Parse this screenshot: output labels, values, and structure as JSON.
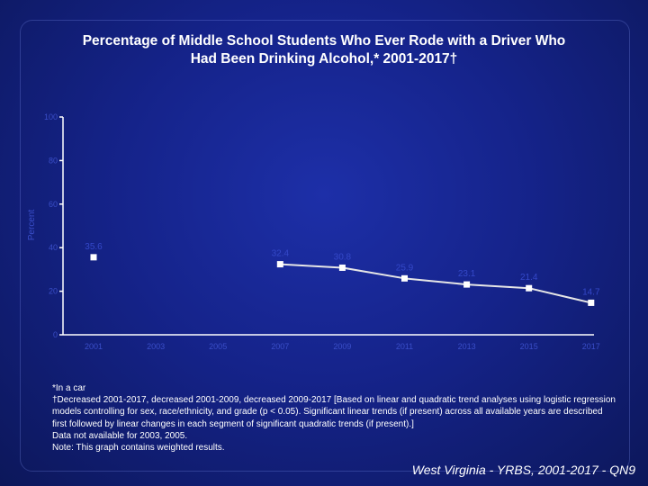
{
  "title": {
    "line1": "Percentage of Middle School Students Who Ever Rode with a Driver Who",
    "line2": "Had Been Drinking Alcohol,* 2001-2017†"
  },
  "chart_data": {
    "type": "line",
    "ylabel": "Percent",
    "ylim": [
      0,
      100
    ],
    "y_ticks": [
      0,
      20,
      40,
      60,
      80,
      100
    ],
    "x_ticks": [
      "2001",
      "2003",
      "2005",
      "2007",
      "2009",
      "2011",
      "2013",
      "2015",
      "2017"
    ],
    "points": [
      {
        "x": "2001",
        "y": 35.6,
        "label": "35.6"
      },
      {
        "x": "2007",
        "y": 32.4,
        "label": "32.4"
      },
      {
        "x": "2009",
        "y": 30.8,
        "label": "30.8"
      },
      {
        "x": "2011",
        "y": 25.9,
        "label": "25.9"
      },
      {
        "x": "2013",
        "y": 23.1,
        "label": "23.1"
      },
      {
        "x": "2015",
        "y": 21.4,
        "label": "21.4"
      },
      {
        "x": "2017",
        "y": 14.7,
        "label": "14.7"
      }
    ],
    "colors": {
      "line": "#e6e6e6",
      "marker": "#ffffff",
      "labels": "#3448c8"
    }
  },
  "notes": [
    "*In a car",
    "†Decreased 2001-2017, decreased 2001-2009, decreased 2009-2017 [Based on linear and quadratic trend analyses using logistic regression models controlling for sex, race/ethnicity, and grade (p < 0.05). Significant linear trends (if present) across all available years are described first followed by linear changes in each segment of significant quadratic trends (if present).]",
    "Data not available for 2003, 2005.",
    "Note: This graph contains weighted results."
  ],
  "source": "West Virginia - YRBS, 2001-2017 - QN9"
}
